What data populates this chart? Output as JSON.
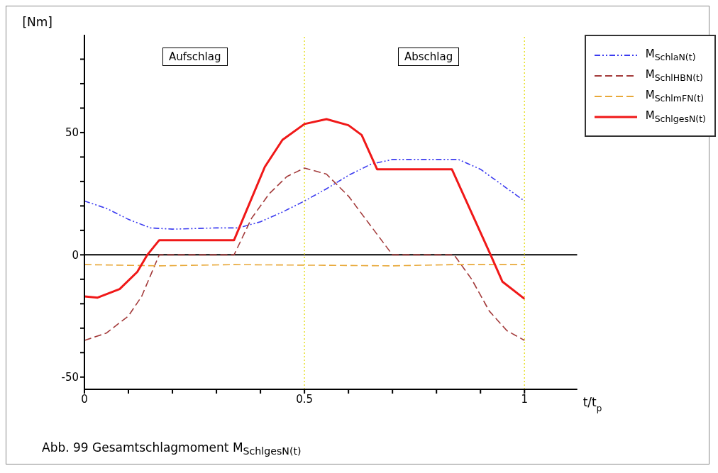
{
  "chart_data": {
    "type": "line",
    "xlabel": "t/t$_{p}$",
    "ylabel": "[Nm]",
    "xlim": [
      0,
      1.12
    ],
    "xticks": [
      0,
      {
        "value": 0.1,
        "label": null
      },
      {
        "value": 0.2,
        "label": null
      },
      {
        "value": 0.3,
        "label": null
      },
      {
        "value": 0.4,
        "label": null
      },
      0.5,
      {
        "value": 0.6,
        "label": null
      },
      {
        "value": 0.7,
        "label": null
      },
      {
        "value": 0.8,
        "label": null
      },
      {
        "value": 0.9,
        "label": null
      },
      1
    ],
    "ylim": [
      -55,
      90
    ],
    "yticks": [
      -50,
      {
        "value": -40,
        "label": null
      },
      {
        "value": -30,
        "label": null
      },
      {
        "value": -20,
        "label": null
      },
      {
        "value": -10,
        "label": null
      },
      0,
      {
        "value": 10,
        "label": null
      },
      {
        "value": 20,
        "label": null
      },
      {
        "value": 30,
        "label": null
      },
      {
        "value": 40,
        "label": null
      },
      50,
      {
        "value": 60,
        "label": null
      },
      {
        "value": 70,
        "label": null
      },
      {
        "value": 80,
        "label": null
      }
    ],
    "grid": false,
    "legend": "right",
    "ref_lines": [
      {
        "axis": "x",
        "value": 0.5,
        "color": "#e8e030",
        "line_style": "dotted"
      },
      {
        "axis": "x",
        "value": 1,
        "color": "#e8e030",
        "line_style": "dotted"
      }
    ],
    "annotations": [
      "Aufschlag",
      "Abschlag",
      "Abb. 99   Gesamtschlagmoment M$_{SchlgesN(t)}$"
    ],
    "series": [
      {
        "name": "M$_{SchlaN(t)}$",
        "color": "#3b3bf0",
        "line_style": "dotted",
        "x": [
          0,
          0.05,
          0.1,
          0.15,
          0.2,
          0.3,
          0.35,
          0.4,
          0.45,
          0.5,
          0.55,
          0.6,
          0.65,
          0.7,
          0.8,
          0.85,
          0.9,
          0.95,
          1
        ],
        "values": [
          22,
          19,
          14.5,
          11,
          10.5,
          11,
          11,
          13.5,
          17.5,
          22,
          27,
          32.5,
          37,
          39,
          39,
          39,
          35,
          28.5,
          22
        ]
      },
      {
        "name": "M$_{SchlHBN(t)}$",
        "color": "#a33a3a",
        "line_style": "dashed",
        "x": [
          0,
          0.05,
          0.1,
          0.13,
          0.17,
          0.34,
          0.38,
          0.42,
          0.46,
          0.5,
          0.55,
          0.6,
          0.65,
          0.7,
          0.84,
          0.88,
          0.92,
          0.96,
          1
        ],
        "values": [
          -35,
          -32,
          -25,
          -17,
          0,
          0,
          15,
          25,
          32,
          35.5,
          33,
          24,
          12,
          0,
          0,
          -10,
          -23,
          -31,
          -35
        ]
      },
      {
        "name": "M$_{SchlmFN(t)}$",
        "color": "#e8a838",
        "line_style": "dashed",
        "x": [
          0,
          0.17,
          0.34,
          0.7,
          0.84,
          1
        ],
        "values": [
          -4,
          -4.5,
          -4,
          -4.5,
          -4,
          -4
        ]
      },
      {
        "name": "M$_{SchlgesN(t)}$",
        "color": "#f01818",
        "line_style": "solid",
        "x": [
          0,
          0.03,
          0.08,
          0.12,
          0.143,
          0.17,
          0.34,
          0.41,
          0.45,
          0.5,
          0.55,
          0.6,
          0.63,
          0.665,
          0.835,
          0.923,
          0.95,
          1
        ],
        "values": [
          -17,
          -17.5,
          -14,
          -7,
          0,
          6,
          6,
          36,
          47,
          53.5,
          55.5,
          53,
          49,
          35,
          35,
          0,
          -11,
          -18
        ]
      }
    ]
  }
}
